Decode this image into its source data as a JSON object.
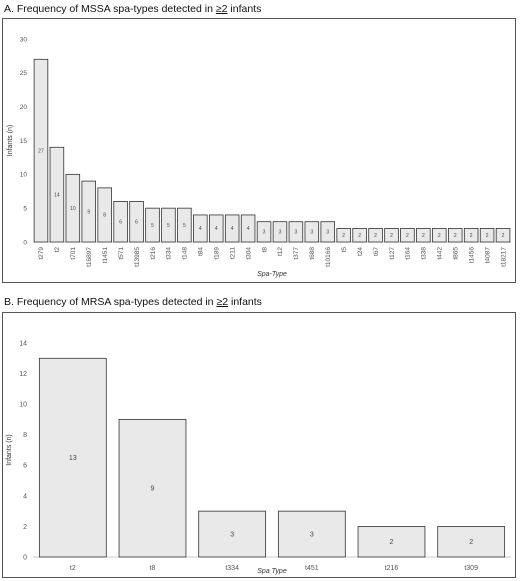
{
  "chart_data": [
    {
      "type": "bar",
      "title_prefix": "A. Frequency of MSSA spa-types detected in ",
      "title_ge": "≥2",
      "title_suffix": " infants",
      "xlabel": "Spa-Type",
      "ylabel": "Infants (n)",
      "ylim": [
        0,
        30
      ],
      "yticks": [
        "0",
        "5",
        "10",
        "15",
        "20",
        "25",
        "30"
      ],
      "grid": false,
      "categories": [
        "t279",
        "t2",
        "t701",
        "t16897",
        "t1451",
        "t571",
        "t13985",
        "t216",
        "t334",
        "t148",
        "t84",
        "t189",
        "t211",
        "t304",
        "t8",
        "t12",
        "t377",
        "t688",
        "t10166",
        "t5",
        "t24",
        "t67",
        "t127",
        "t164",
        "t338",
        "t442",
        "t865",
        "t1456",
        "t4087",
        "t18217"
      ],
      "values": [
        27,
        14,
        10,
        9,
        8,
        6,
        6,
        5,
        5,
        5,
        4,
        4,
        4,
        4,
        3,
        3,
        3,
        3,
        3,
        2,
        2,
        2,
        2,
        2,
        2,
        2,
        2,
        2,
        2,
        2
      ],
      "data_labels": [
        "27",
        "14",
        "10",
        "9",
        "8",
        "6",
        "6",
        "5",
        "5",
        "5",
        "4",
        "4",
        "4",
        "4",
        "3",
        "3",
        "3",
        "3",
        "3",
        "2",
        "2",
        "2",
        "2",
        "2",
        "2",
        "2",
        "2",
        "2",
        "2",
        "2"
      ]
    },
    {
      "type": "bar",
      "title_prefix": "B. Frequency of MRSA spa-types detected in ",
      "title_ge": "≥2",
      "title_suffix": " infants",
      "xlabel": "Spa Type",
      "ylabel": "Infants (n)",
      "ylim": [
        0,
        14
      ],
      "yticks": [
        "0",
        "2",
        "4",
        "6",
        "8",
        "10",
        "12",
        "14"
      ],
      "grid": false,
      "categories": [
        "t2",
        "t8",
        "t334",
        "t451",
        "t216",
        "t309"
      ],
      "values": [
        13,
        9,
        3,
        3,
        2,
        2
      ],
      "data_labels": [
        "13",
        "9",
        "3",
        "3",
        "2",
        "2"
      ]
    }
  ]
}
